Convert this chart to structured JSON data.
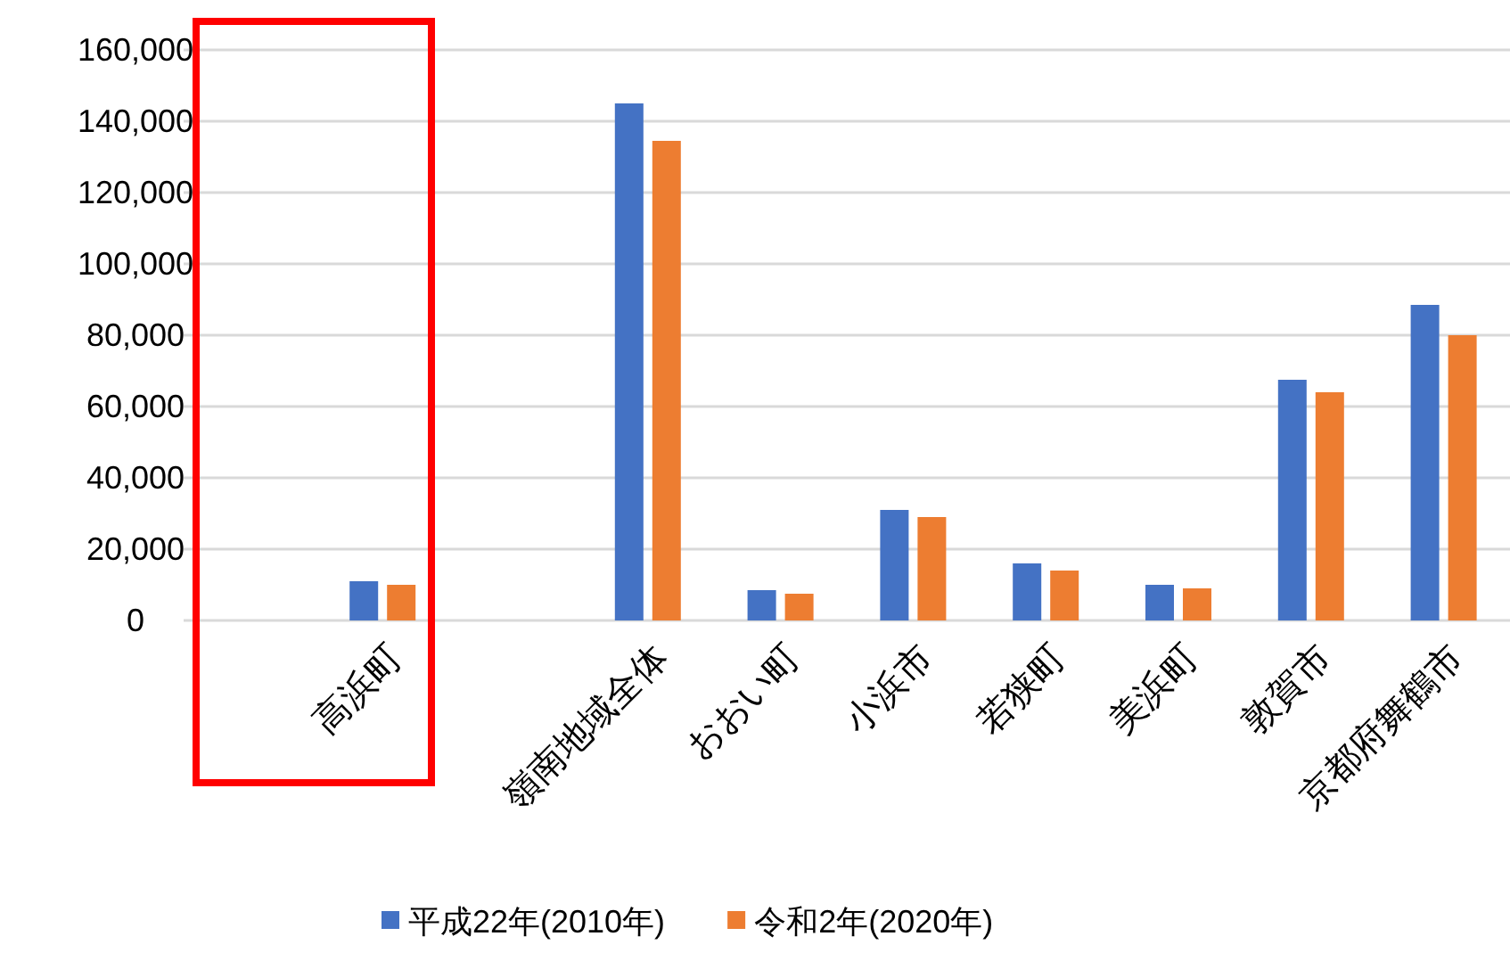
{
  "chart_data": {
    "type": "bar",
    "categories": [
      null,
      "高浜町",
      null,
      "嶺南地域全体",
      "おおい町",
      "小浜市",
      "若狭町",
      "美浜町",
      "敦賀市",
      "京都府舞鶴市"
    ],
    "series": [
      {
        "name": "平成22年(2010年)",
        "color": "#4472c4",
        "values": [
          null,
          11000,
          null,
          145000,
          8500,
          31000,
          16000,
          10000,
          67500,
          88500
        ]
      },
      {
        "name": "令和2年(2020年)",
        "color": "#ed7d31",
        "values": [
          null,
          10000,
          null,
          134500,
          7500,
          29000,
          14000,
          9000,
          64000,
          80000
        ]
      }
    ],
    "ylim": [
      0,
      160000
    ],
    "yticks": [
      {
        "value": 0,
        "label": "0"
      },
      {
        "value": 20000,
        "label": "20,000"
      },
      {
        "value": 40000,
        "label": "40,000"
      },
      {
        "value": 60000,
        "label": "60,000"
      },
      {
        "value": 80000,
        "label": "80,000"
      },
      {
        "value": 100000,
        "label": "100,000"
      },
      {
        "value": 120000,
        "label": "120,000"
      },
      {
        "value": 140000,
        "label": "140,000"
      },
      {
        "value": 160000,
        "label": "160,000"
      }
    ],
    "grid": "y",
    "legend": "bottom"
  }
}
